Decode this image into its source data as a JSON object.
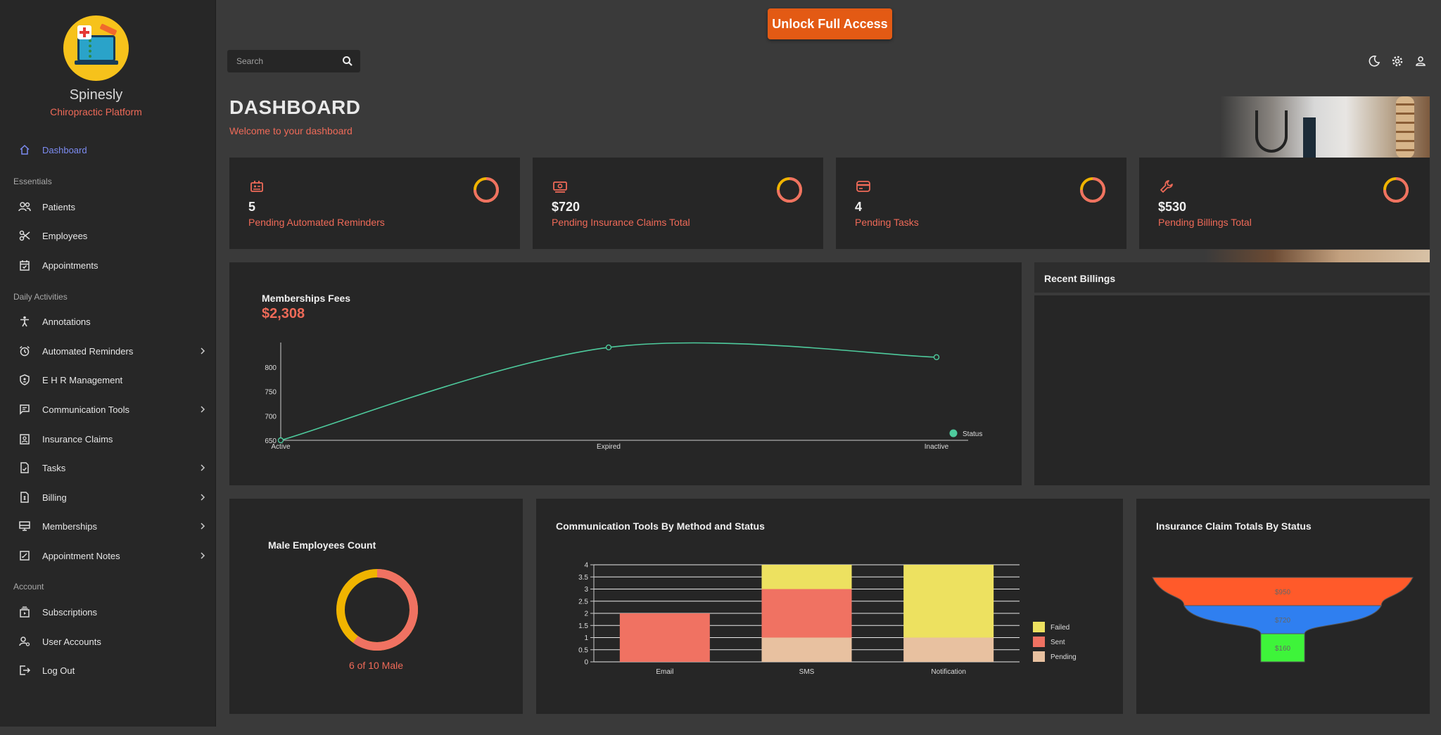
{
  "app": {
    "name": "Spinesly",
    "tagline": "Chiropractic Platform",
    "unlock_label": "Unlock Full Access"
  },
  "sidebar": {
    "active": {
      "label": "Dashboard",
      "icon": "home-icon"
    },
    "sections": [
      {
        "label": "Essentials"
      },
      {
        "label": "Daily Activities"
      },
      {
        "label": "Account"
      }
    ],
    "items": [
      {
        "label": "Patients",
        "icon": "people-icon"
      },
      {
        "label": "Employees",
        "icon": "scissors-icon"
      },
      {
        "label": "Appointments",
        "icon": "calendar-icon"
      },
      {
        "label": "Annotations",
        "icon": "accessibility-icon"
      },
      {
        "label": "Automated Reminders",
        "icon": "alarm-icon"
      },
      {
        "label": "E H R Management",
        "icon": "shield-icon"
      },
      {
        "label": "Communication Tools",
        "icon": "message-icon"
      },
      {
        "label": "Insurance Claims",
        "icon": "id-badge-icon"
      },
      {
        "label": "Tasks",
        "icon": "document-icon"
      },
      {
        "label": "Billing",
        "icon": "receipt-icon"
      },
      {
        "label": "Memberships",
        "icon": "monitor-icon"
      },
      {
        "label": "Appointment Notes",
        "icon": "note-edit-icon"
      },
      {
        "label": "Subscriptions",
        "icon": "subscriptions-icon"
      },
      {
        "label": "User Accounts",
        "icon": "user-settings-icon"
      },
      {
        "label": "Log Out",
        "icon": "logout-icon"
      }
    ]
  },
  "header": {
    "search_placeholder": "Search",
    "title": "DASHBOARD",
    "subtitle": "Welcome to your dashboard"
  },
  "stats": [
    {
      "value": "5",
      "label": "Pending Automated Reminders",
      "icon": "contact-card-icon",
      "progress": 0.75
    },
    {
      "value": "$720",
      "label": "Pending Insurance Claims Total",
      "icon": "money-icon",
      "progress": 0.75
    },
    {
      "value": "4",
      "label": "Pending Tasks",
      "icon": "wallet-icon",
      "progress": 0.75
    },
    {
      "value": "$530",
      "label": "Pending Billings Total",
      "icon": "wrench-icon",
      "progress": 0.75
    }
  ],
  "memberships": {
    "title": "Memberships Fees",
    "total": "$2,308",
    "chart_data": {
      "type": "line",
      "categories": [
        "Active",
        "Expired",
        "Inactive"
      ],
      "series": [
        {
          "name": "Status",
          "values": [
            650,
            840,
            820
          ]
        }
      ],
      "ylim": [
        650,
        850
      ],
      "yticks": [
        650,
        700,
        750,
        800
      ],
      "color": "#4ecb9d",
      "legend": "right"
    }
  },
  "recent_billings": {
    "title": "Recent Billings"
  },
  "employees": {
    "title": "Male Employees Count",
    "caption": "6 of 10 Male",
    "male_fraction": 0.6
  },
  "communication": {
    "title": "Communication Tools By Method and Status",
    "chart_data": {
      "type": "bar",
      "stacked": true,
      "categories": [
        "Email",
        "SMS",
        "Notification"
      ],
      "series": [
        {
          "name": "Pending",
          "values": [
            0,
            1,
            1
          ],
          "color": "#e8c1a0"
        },
        {
          "name": "Sent",
          "values": [
            2,
            2,
            0
          ],
          "color": "#f07262"
        },
        {
          "name": "Failed",
          "values": [
            0,
            1,
            3
          ],
          "color": "#ede160"
        }
      ],
      "ylim": [
        0,
        4
      ],
      "yticks": [
        "0",
        "0.5",
        "1",
        "1.5",
        "2",
        "2.5",
        "3",
        "3.5",
        "4"
      ],
      "legend_order": [
        "Failed",
        "Sent",
        "Pending"
      ],
      "legend": "right"
    }
  },
  "insurance": {
    "title": "Insurance Claim Totals By Status",
    "chart_data": {
      "type": "funnel",
      "values": [
        {
          "label": "$950",
          "value": 950,
          "color": "#ff5a2a"
        },
        {
          "label": "$720",
          "value": 720,
          "color": "#2f7ff0"
        },
        {
          "label": "$160",
          "value": 160,
          "color": "#3ef43a"
        }
      ]
    }
  }
}
